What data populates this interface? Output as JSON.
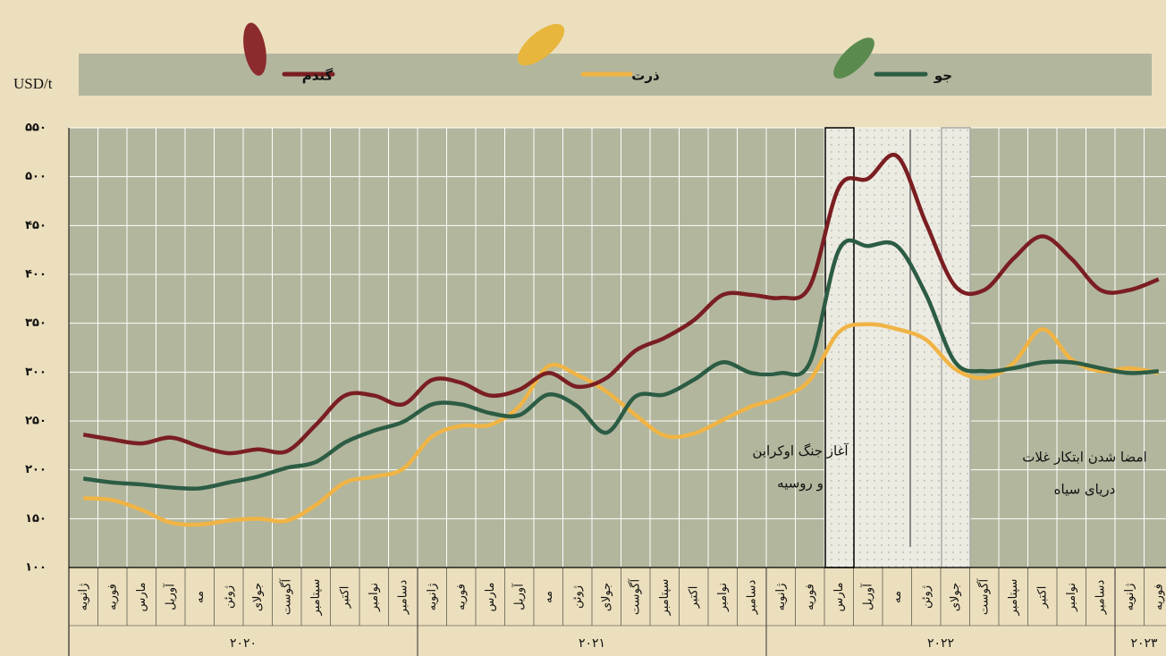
{
  "chart_data": {
    "type": "line",
    "y_label": "USD/t",
    "categories": [
      "ژانویه",
      "فوریه",
      "مارس",
      "آوریل",
      "مه",
      "ژوئن",
      "جولای",
      "آگوست",
      "سپتامبر",
      "اکتبر",
      "نوامبر",
      "دسامبر",
      "ژانویه",
      "فوریه",
      "مارس",
      "آوریل",
      "مه",
      "ژوئن",
      "جولای",
      "آگوست",
      "سپتامبر",
      "اکتبر",
      "نوامبر",
      "دسامبر",
      "ژانویه",
      "فوریه",
      "مارس",
      "آوریل",
      "مه",
      "ژوئن",
      "جولای",
      "آگوست",
      "سپتامبر",
      "اکتبر",
      "نوامبر",
      "دسامبر",
      "ژانویه",
      "فوریه"
    ],
    "x_groups": [
      "۲۰۲۰",
      "۲۰۲۱",
      "۲۰۲۲",
      "۲۰۲۳"
    ],
    "ylim": [
      100,
      550
    ],
    "yticks": [
      {
        "value": 100,
        "label": "۱۰۰"
      },
      {
        "value": 150,
        "label": "۱۵۰"
      },
      {
        "value": 200,
        "label": "۲۰۰"
      },
      {
        "value": 250,
        "label": "۲۵۰"
      },
      {
        "value": 300,
        "label": "۳۰۰"
      },
      {
        "value": 350,
        "label": "۳۵۰"
      },
      {
        "value": 400,
        "label": "۴۰۰"
      },
      {
        "value": 450,
        "label": "۴۵۰"
      },
      {
        "value": 500,
        "label": "۵۰۰"
      },
      {
        "value": 550,
        "label": "۵۵۰"
      }
    ],
    "grid": true,
    "series": [
      {
        "name": "گندم",
        "color": "#7a1e22",
        "values": [
          236,
          231,
          227,
          233,
          224,
          217,
          221,
          219,
          246,
          276,
          276,
          267,
          292,
          289,
          276,
          282,
          299,
          285,
          294,
          322,
          335,
          353,
          379,
          379,
          376,
          388,
          489,
          498,
          521,
          452,
          388,
          384,
          416,
          439,
          416,
          384,
          384,
          395
        ]
      },
      {
        "name": "ذرت",
        "color": "#f0b445",
        "values": [
          171,
          169,
          159,
          146,
          144,
          148,
          150,
          148,
          164,
          187,
          193,
          201,
          234,
          245,
          246,
          265,
          306,
          297,
          280,
          256,
          235,
          237,
          251,
          265,
          274,
          292,
          341,
          349,
          344,
          333,
          303,
          294,
          309,
          344,
          313,
          301,
          304,
          299
        ]
      },
      {
        "name": "جو",
        "color": "#2c5c44",
        "values": [
          191,
          187,
          185,
          182,
          181,
          187,
          193,
          202,
          208,
          228,
          240,
          249,
          267,
          267,
          258,
          256,
          277,
          265,
          238,
          275,
          277,
          292,
          310,
          299,
          299,
          310,
          425,
          429,
          429,
          379,
          310,
          301,
          304,
          310,
          310,
          304,
          299,
          301
        ]
      }
    ],
    "annotations": [
      {
        "lines": [
          "آغاز جنگ اوکراین",
          "و روسیه"
        ]
      },
      {
        "lines": [
          "امضا شدن ابتکار غلات",
          "دریای سیاه"
        ]
      }
    ]
  }
}
